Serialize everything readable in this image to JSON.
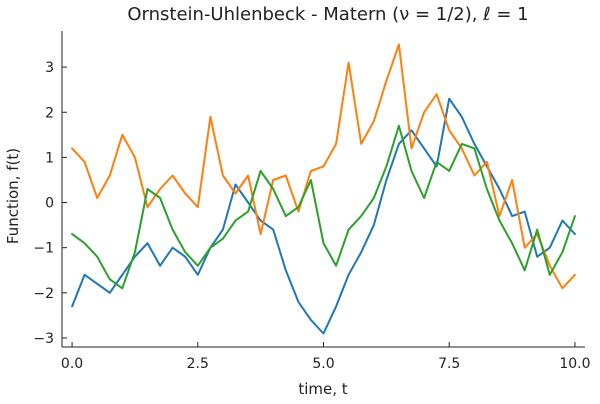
{
  "chart_data": {
    "type": "line",
    "title": "Ornstein-Uhlenbeck - Matern (ν = 1/2), ℓ = 1",
    "xlabel": "time, t",
    "ylabel": "Function, f(t)",
    "xlim": [
      -0.2,
      10.2
    ],
    "ylim": [
      -3.2,
      3.8
    ],
    "xticks": [
      0.0,
      2.5,
      5.0,
      7.5,
      10.0
    ],
    "xtick_labels": [
      "0.0",
      "2.5",
      "5.0",
      "7.5",
      "10.0"
    ],
    "yticks": [
      -3,
      -2,
      -1,
      0,
      1,
      2,
      3
    ],
    "ytick_labels": [
      "−3",
      "−2",
      "−1",
      "0",
      "1",
      "2",
      "3"
    ],
    "grid": false,
    "legend": "none",
    "x": [
      0.0,
      0.25,
      0.5,
      0.75,
      1.0,
      1.25,
      1.5,
      1.75,
      2.0,
      2.25,
      2.5,
      2.75,
      3.0,
      3.25,
      3.5,
      3.75,
      4.0,
      4.25,
      4.5,
      4.75,
      5.0,
      5.25,
      5.5,
      5.75,
      6.0,
      6.25,
      6.5,
      6.75,
      7.0,
      7.25,
      7.5,
      7.75,
      8.0,
      8.25,
      8.5,
      8.75,
      9.0,
      9.25,
      9.5,
      9.75,
      10.0
    ],
    "series": [
      {
        "color": "#1f77b4",
        "values": [
          -2.3,
          -1.6,
          -1.8,
          -2.0,
          -1.6,
          -1.2,
          -0.9,
          -1.4,
          -1.0,
          -1.2,
          -1.6,
          -1.0,
          -0.6,
          0.4,
          0.0,
          -0.4,
          -0.6,
          -1.5,
          -2.2,
          -2.6,
          -2.9,
          -2.3,
          -1.6,
          -1.1,
          -0.5,
          0.5,
          1.3,
          1.6,
          1.2,
          0.8,
          2.3,
          1.9,
          1.3,
          0.8,
          0.3,
          -0.3,
          -0.2,
          -1.2,
          -1.0,
          -0.4,
          -0.7
        ]
      },
      {
        "color": "#ff7f0e",
        "values": [
          1.2,
          0.9,
          0.1,
          0.6,
          1.5,
          1.0,
          -0.1,
          0.3,
          0.6,
          0.2,
          -0.1,
          1.9,
          0.6,
          0.2,
          0.6,
          -0.7,
          0.5,
          0.6,
          -0.2,
          0.7,
          0.8,
          1.3,
          3.1,
          1.3,
          1.8,
          2.7,
          3.5,
          1.2,
          2.0,
          2.4,
          1.6,
          1.2,
          0.6,
          0.9,
          -0.3,
          0.5,
          -1.0,
          -0.7,
          -1.4,
          -1.9,
          -1.6
        ]
      },
      {
        "color": "#2ca02c",
        "values": [
          -0.7,
          -0.9,
          -1.2,
          -1.7,
          -1.9,
          -1.1,
          0.3,
          0.1,
          -0.6,
          -1.1,
          -1.4,
          -1.0,
          -0.8,
          -0.4,
          -0.2,
          0.7,
          0.3,
          -0.3,
          -0.1,
          0.5,
          -0.9,
          -1.4,
          -0.6,
          -0.3,
          0.1,
          0.8,
          1.7,
          0.7,
          0.1,
          0.9,
          0.7,
          1.3,
          1.2,
          0.3,
          -0.4,
          -0.9,
          -1.5,
          -0.6,
          -1.6,
          -1.1,
          -0.3
        ]
      }
    ]
  }
}
